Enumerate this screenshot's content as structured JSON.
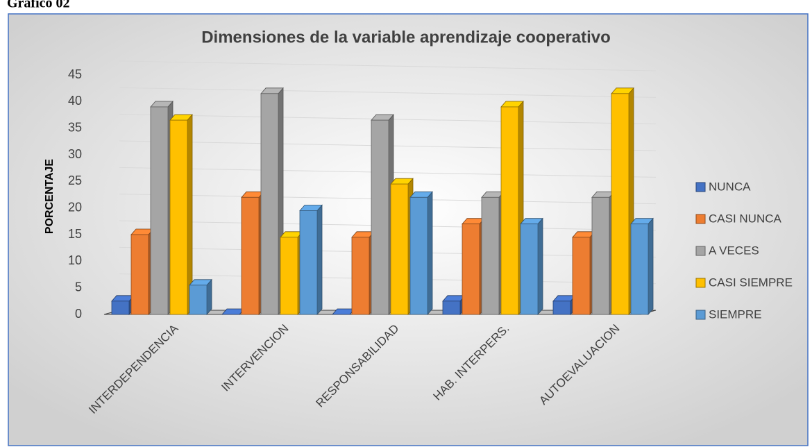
{
  "caption": "Gráfico 02",
  "chart_data": {
    "type": "bar3d",
    "title": "Dimensiones de la variable aprendizaje cooperativo",
    "ylabel": "PORCENTAJE",
    "categories": [
      "INTERDEPENDENCIA",
      "INTERVENCION",
      "RESPONSABILIDAD",
      "HAB. INTERPERS.",
      "AUTOEVALUACION"
    ],
    "series": [
      {
        "name": "NUNCA",
        "color": "#4472c4",
        "values": [
          2.5,
          0,
          0,
          2.5,
          2.5
        ]
      },
      {
        "name": "CASI NUNCA",
        "color": "#ed7d31",
        "values": [
          15,
          22,
          14.5,
          17,
          14.5
        ]
      },
      {
        "name": "A VECES",
        "color": "#a5a5a5",
        "values": [
          39,
          41.5,
          36.5,
          22,
          22
        ]
      },
      {
        "name": "CASI SIEMPRE",
        "color": "#ffc000",
        "values": [
          36.5,
          14.5,
          24.5,
          39,
          41.5
        ]
      },
      {
        "name": "SIEMPRE",
        "color": "#5b9bd5",
        "values": [
          5.5,
          19.5,
          22,
          17,
          17
        ]
      }
    ],
    "ylim": [
      0,
      45
    ],
    "yticks": [
      0,
      5,
      10,
      15,
      20,
      25,
      30,
      35,
      40,
      45
    ],
    "grid": true,
    "legend": "right"
  }
}
